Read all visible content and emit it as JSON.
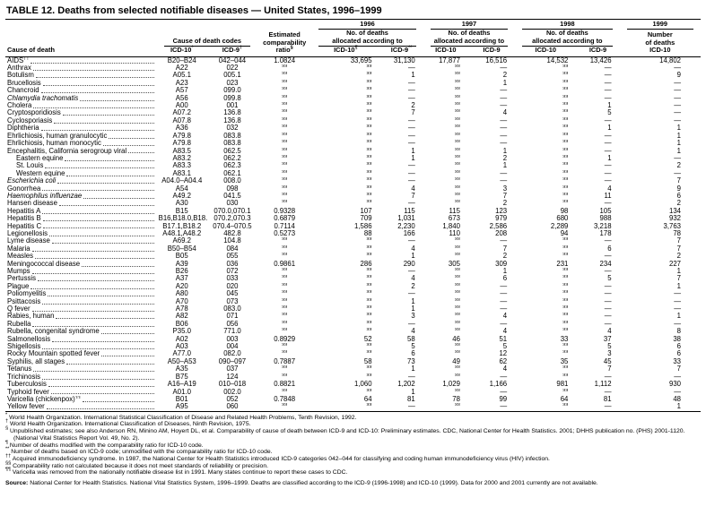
{
  "title": "TABLE 12. Deaths from selected notifiable diseases — United States, 1996–1999",
  "header": {
    "cause_of_death": "Cause of death",
    "codes_group": "Cause of death codes",
    "estimated_lines": [
      "Estimated",
      "comparability"
    ],
    "years": [
      "1996",
      "1997",
      "1998"
    ],
    "alloc_line1": "No. of deaths",
    "alloc_line2": "allocated according to",
    "year4": "1999",
    "number_line1": "Number",
    "number_line2": "of deaths",
    "subheads": [
      {
        "t": "ICD-10",
        "s": "*"
      },
      {
        "t": "ICD-9",
        "s": "†"
      },
      {
        "t": "ratio",
        "s": "§"
      },
      {
        "t": "ICD-10",
        "s": "¶"
      },
      {
        "t": "ICD-9",
        "s": "**"
      },
      {
        "t": "ICD-10",
        "s": ""
      },
      {
        "t": "ICD-9",
        "s": ""
      },
      {
        "t": "ICD-10",
        "s": ""
      },
      {
        "t": "ICD-9",
        "s": ""
      },
      {
        "t": "ICD-10",
        "s": ""
      }
    ]
  },
  "rows": [
    {
      "name": "AIDS",
      "sup": "††",
      "icd10": "B20–B24",
      "icd9": "042–044",
      "ratio": "1.0824",
      "v": [
        "33,695",
        "31,130",
        "17,877",
        "16,516",
        "14,532",
        "13,426",
        "14,802"
      ]
    },
    {
      "name": "Anthrax",
      "icd10": "A22",
      "icd9": "022",
      "ratio": "§§",
      "v": [
        "§§",
        "—",
        "§§",
        "—",
        "§§",
        "—",
        "—"
      ]
    },
    {
      "name": "Botulism",
      "icd10": "A05.1",
      "icd9": "005.1",
      "ratio": "§§",
      "v": [
        "§§",
        "1",
        "§§",
        "2",
        "§§",
        "—",
        "9"
      ]
    },
    {
      "name": "Brucellosis",
      "icd10": "A23",
      "icd9": "023",
      "ratio": "§§",
      "v": [
        "§§",
        "—",
        "§§",
        "1",
        "§§",
        "—",
        "—"
      ]
    },
    {
      "name": "Chancroid",
      "icd10": "A57",
      "icd9": "099.0",
      "ratio": "§§",
      "v": [
        "§§",
        "—",
        "§§",
        "—",
        "§§",
        "—",
        "—"
      ]
    },
    {
      "name": "Chlamydia trachomatis",
      "italic": true,
      "icd10": "A56",
      "icd9": "099.8",
      "ratio": "§§",
      "v": [
        "§§",
        "—",
        "§§",
        "—",
        "§§",
        "—",
        "—"
      ]
    },
    {
      "name": "Cholera",
      "icd10": "A00",
      "icd9": "001",
      "ratio": "§§",
      "v": [
        "§§",
        "2",
        "§§",
        "—",
        "§§",
        "1",
        "—"
      ]
    },
    {
      "name": "Cryptosporidiosis",
      "icd10": "A07.2",
      "icd9": "136.8",
      "ratio": "§§",
      "v": [
        "§§",
        "7",
        "§§",
        "4",
        "§§",
        "5",
        "—"
      ]
    },
    {
      "name": "Cyclosporiasis",
      "icd10": "A07.8",
      "icd9": "136.8",
      "ratio": "§§",
      "v": [
        "§§",
        "—",
        "§§",
        "—",
        "§§",
        "—",
        "—"
      ]
    },
    {
      "name": "Diphtheria",
      "icd10": "A36",
      "icd9": "032",
      "ratio": "§§",
      "v": [
        "§§",
        "—",
        "§§",
        "—",
        "§§",
        "1",
        "1"
      ]
    },
    {
      "name": "Ehrlichiosis, human granulocytic",
      "icd10": "A79.8",
      "icd9": "083.8",
      "ratio": "§§",
      "v": [
        "§§",
        "—",
        "§§",
        "—",
        "§§",
        "—",
        "1"
      ]
    },
    {
      "name": "Ehrlichiosis, human monocytic",
      "icd10": "A79.8",
      "icd9": "083.8",
      "ratio": "§§",
      "v": [
        "§§",
        "—",
        "§§",
        "—",
        "§§",
        "—",
        "1"
      ]
    },
    {
      "name": "Encephalitis, California serogroup viral",
      "icd10": "A83.5",
      "icd9": "062.5",
      "ratio": "§§",
      "v": [
        "§§",
        "1",
        "§§",
        "1",
        "§§",
        "—",
        "1"
      ]
    },
    {
      "name": "Eastern equine",
      "indent": true,
      "icd10": "A83.2",
      "icd9": "062.2",
      "ratio": "§§",
      "v": [
        "§§",
        "1",
        "§§",
        "2",
        "§§",
        "1",
        "—"
      ]
    },
    {
      "name": "St. Louis",
      "indent": true,
      "icd10": "A83.3",
      "icd9": "062.3",
      "ratio": "§§",
      "v": [
        "§§",
        "—",
        "§§",
        "1",
        "§§",
        "—",
        "2"
      ]
    },
    {
      "name": "Western equine",
      "indent": true,
      "icd10": "A83.1",
      "icd9": "062.1",
      "ratio": "§§",
      "v": [
        "§§",
        "—",
        "§§",
        "—",
        "§§",
        "—",
        "—"
      ]
    },
    {
      "name": "Escherichia coli",
      "italic": true,
      "icd10": "A04.0–A04.4",
      "icd9": "008.0",
      "ratio": "§§",
      "v": [
        "§§",
        "—",
        "§§",
        "—",
        "§§",
        "—",
        "7"
      ]
    },
    {
      "name": "Gonorrhea",
      "icd10": "A54",
      "icd9": "098",
      "ratio": "§§",
      "v": [
        "§§",
        "4",
        "§§",
        "3",
        "§§",
        "4",
        "9"
      ]
    },
    {
      "name": "Haemophilus influenzae",
      "italic": true,
      "icd10": "A49.2",
      "icd9": "041.5",
      "ratio": "§§",
      "v": [
        "§§",
        "7",
        "§§",
        "7",
        "§§",
        "11",
        "6"
      ]
    },
    {
      "name": "Hansen disease",
      "icd10": "A30",
      "icd9": "030",
      "ratio": "§§",
      "v": [
        "§§",
        "—",
        "§§",
        "2",
        "§§",
        "—",
        "2"
      ]
    },
    {
      "name": "Hepatitis A",
      "icd10": "B15",
      "icd9": "070.0,070.1",
      "ratio": "0.9328",
      "v": [
        "107",
        "115",
        "115",
        "123",
        "98",
        "105",
        "134"
      ]
    },
    {
      "name": "Hepatitis B",
      "icd10": "B16,B18.0,B18.1",
      "icd9": "070.2,070.3",
      "ratio": "0.6879",
      "v": [
        "709",
        "1,031",
        "673",
        "979",
        "680",
        "988",
        "932"
      ]
    },
    {
      "name": "Hepatitis C",
      "icd10": "B17.1,B18.2",
      "icd9": "070.4–070.5",
      "ratio": "0.7114",
      "v": [
        "1,586",
        "2,230",
        "1,840",
        "2,586",
        "2,289",
        "3,218",
        "3,763"
      ]
    },
    {
      "name": "Legionellosis",
      "icd10": "A48.1,A48.2",
      "icd9": "482.8",
      "ratio": "0.5273",
      "v": [
        "88",
        "166",
        "110",
        "208",
        "94",
        "178",
        "78"
      ]
    },
    {
      "name": "Lyme disease",
      "icd10": "A69.2",
      "icd9": "104.8",
      "ratio": "§§",
      "v": [
        "§§",
        "—",
        "§§",
        "—",
        "§§",
        "—",
        "7"
      ]
    },
    {
      "name": "Malaria",
      "icd10": "B50–B54",
      "icd9": "084",
      "ratio": "§§",
      "v": [
        "§§",
        "4",
        "§§",
        "7",
        "§§",
        "6",
        "7"
      ]
    },
    {
      "name": "Measles",
      "icd10": "B05",
      "icd9": "055",
      "ratio": "§§",
      "v": [
        "§§",
        "1",
        "§§",
        "2",
        "§§",
        "—",
        "2"
      ]
    },
    {
      "name": "Meningococcal disease",
      "icd10": "A39",
      "icd9": "036",
      "ratio": "0.9861",
      "v": [
        "286",
        "290",
        "305",
        "309",
        "231",
        "234",
        "227"
      ]
    },
    {
      "name": "Mumps",
      "icd10": "B26",
      "icd9": "072",
      "ratio": "§§",
      "v": [
        "§§",
        "—",
        "§§",
        "1",
        "§§",
        "—",
        "1"
      ]
    },
    {
      "name": "Pertussis",
      "icd10": "A37",
      "icd9": "033",
      "ratio": "§§",
      "v": [
        "§§",
        "4",
        "§§",
        "6",
        "§§",
        "5",
        "7"
      ]
    },
    {
      "name": "Plague",
      "icd10": "A20",
      "icd9": "020",
      "ratio": "§§",
      "v": [
        "§§",
        "2",
        "§§",
        "—",
        "§§",
        "—",
        "1"
      ]
    },
    {
      "name": "Poliomyelitis",
      "icd10": "A80",
      "icd9": "045",
      "ratio": "§§",
      "v": [
        "§§",
        "—",
        "§§",
        "—",
        "§§",
        "—",
        "—"
      ]
    },
    {
      "name": "Psittacosis",
      "icd10": "A70",
      "icd9": "073",
      "ratio": "§§",
      "v": [
        "§§",
        "1",
        "§§",
        "—",
        "§§",
        "—",
        "—"
      ]
    },
    {
      "name": "Q fever",
      "icd10": "A78",
      "icd9": "083.0",
      "ratio": "§§",
      "v": [
        "§§",
        "1",
        "§§",
        "—",
        "§§",
        "—",
        "—"
      ]
    },
    {
      "name": "Rabies, human",
      "icd10": "A82",
      "icd9": "071",
      "ratio": "§§",
      "v": [
        "§§",
        "3",
        "§§",
        "4",
        "§§",
        "—",
        "1"
      ]
    },
    {
      "name": "Rubella",
      "icd10": "B06",
      "icd9": "056",
      "ratio": "§§",
      "v": [
        "§§",
        "—",
        "§§",
        "—",
        "§§",
        "—",
        "—"
      ]
    },
    {
      "name": "Rubella, congenital syndrome",
      "icd10": "P35.0",
      "icd9": "771.0",
      "ratio": "§§",
      "v": [
        "§§",
        "4",
        "§§",
        "4",
        "§§",
        "4",
        "8"
      ]
    },
    {
      "name": "Salmonellosis",
      "icd10": "A02",
      "icd9": "003",
      "ratio": "0.8929",
      "v": [
        "52",
        "58",
        "46",
        "51",
        "33",
        "37",
        "38"
      ]
    },
    {
      "name": "Shigellosis",
      "icd10": "A03",
      "icd9": "004",
      "ratio": "§§",
      "v": [
        "§§",
        "5",
        "§§",
        "5",
        "§§",
        "5",
        "6"
      ]
    },
    {
      "name": "Rocky Mountain spotted fever",
      "icd10": "A77.0",
      "icd9": "082.0",
      "ratio": "§§",
      "v": [
        "§§",
        "6",
        "§§",
        "12",
        "§§",
        "3",
        "6"
      ]
    },
    {
      "name": "Syphilis, all stages",
      "icd10": "A50–A53",
      "icd9": "090–097",
      "ratio": "0.7887",
      "v": [
        "58",
        "73",
        "49",
        "62",
        "35",
        "45",
        "33"
      ]
    },
    {
      "name": "Tetanus",
      "icd10": "A35",
      "icd9": "037",
      "ratio": "§§",
      "v": [
        "§§",
        "1",
        "§§",
        "4",
        "§§",
        "7",
        "7"
      ]
    },
    {
      "name": "Trichinosis",
      "icd10": "B75",
      "icd9": "124",
      "ratio": "§§",
      "v": [
        "§§",
        "—",
        "§§",
        "—",
        "§§",
        "—",
        "—"
      ]
    },
    {
      "name": "Tuberculosis",
      "icd10": "A16–A19",
      "icd9": "010–018",
      "ratio": "0.8821",
      "v": [
        "1,060",
        "1,202",
        "1,029",
        "1,166",
        "981",
        "1,112",
        "930"
      ]
    },
    {
      "name": "Typhoid fever",
      "icd10": "A01.0",
      "icd9": "002.0",
      "ratio": "§§",
      "v": [
        "§§",
        "1",
        "§§",
        "—",
        "§§",
        "—",
        "—"
      ]
    },
    {
      "name": "Varicella (chickenpox)",
      "sup": "¶¶",
      "icd10": "B01",
      "icd9": "052",
      "ratio": "0.7848",
      "v": [
        "64",
        "81",
        "78",
        "99",
        "64",
        "81",
        "48"
      ]
    },
    {
      "name": "Yellow fever",
      "icd10": "A95",
      "icd9": "060",
      "ratio": "§§",
      "v": [
        "§§",
        "—",
        "§§",
        "—",
        "§§",
        "—",
        "1"
      ]
    }
  ],
  "footnotes": [
    {
      "m": "*",
      "t": "World Health Organization. International Statistical Classification of Disease and Related Health Problems, Tenth Revision, 1992."
    },
    {
      "m": "†",
      "t": "World Health Organization. International Classification of Diseases, Ninth Revision, 1975."
    },
    {
      "m": "§",
      "t": "Unpublished estimates; see also Anderson RN, Minino AM, Hoyert DL, et al. Comparability of cause of death between ICD-9 and ICD-10: Preliminary estimates. CDC, National Center for Health Statistics. 2001; DHHS publication no. (PHS) 2001-1120. (National Vital Statistics Report Vol. 49, No. 2)."
    },
    {
      "m": "¶",
      "t": "Number of deaths modified with the comparability ratio for ICD-10 code."
    },
    {
      "m": "**",
      "t": "Number of deaths based on ICD-9 code; unmodified with the comparability ratio for ICD-10 code."
    },
    {
      "m": "††",
      "t": "Acquired immunodeficiency syndrome. In 1987, the National Center for Health Statistics introduced ICD-9 categories 042–044 for classifying and coding human immunodeficiency virus (HIV) infection."
    },
    {
      "m": "§§",
      "t": "Comparability ratio not calculated because it does not meet standards of reliability or precision."
    },
    {
      "m": "¶¶",
      "t": "Varicella was removed from the nationally notifiable disease list in 1991. Many states continue to report these cases to CDC."
    }
  ],
  "source": {
    "label": "Source:",
    "text": "National Center for Health Statistics. National Vital Statistics System, 1996–1999. Deaths are classified according to the ICD-9 (1996-1998) and ICD-10 (1999). Data for 2000 and 2001 currently are not available."
  }
}
